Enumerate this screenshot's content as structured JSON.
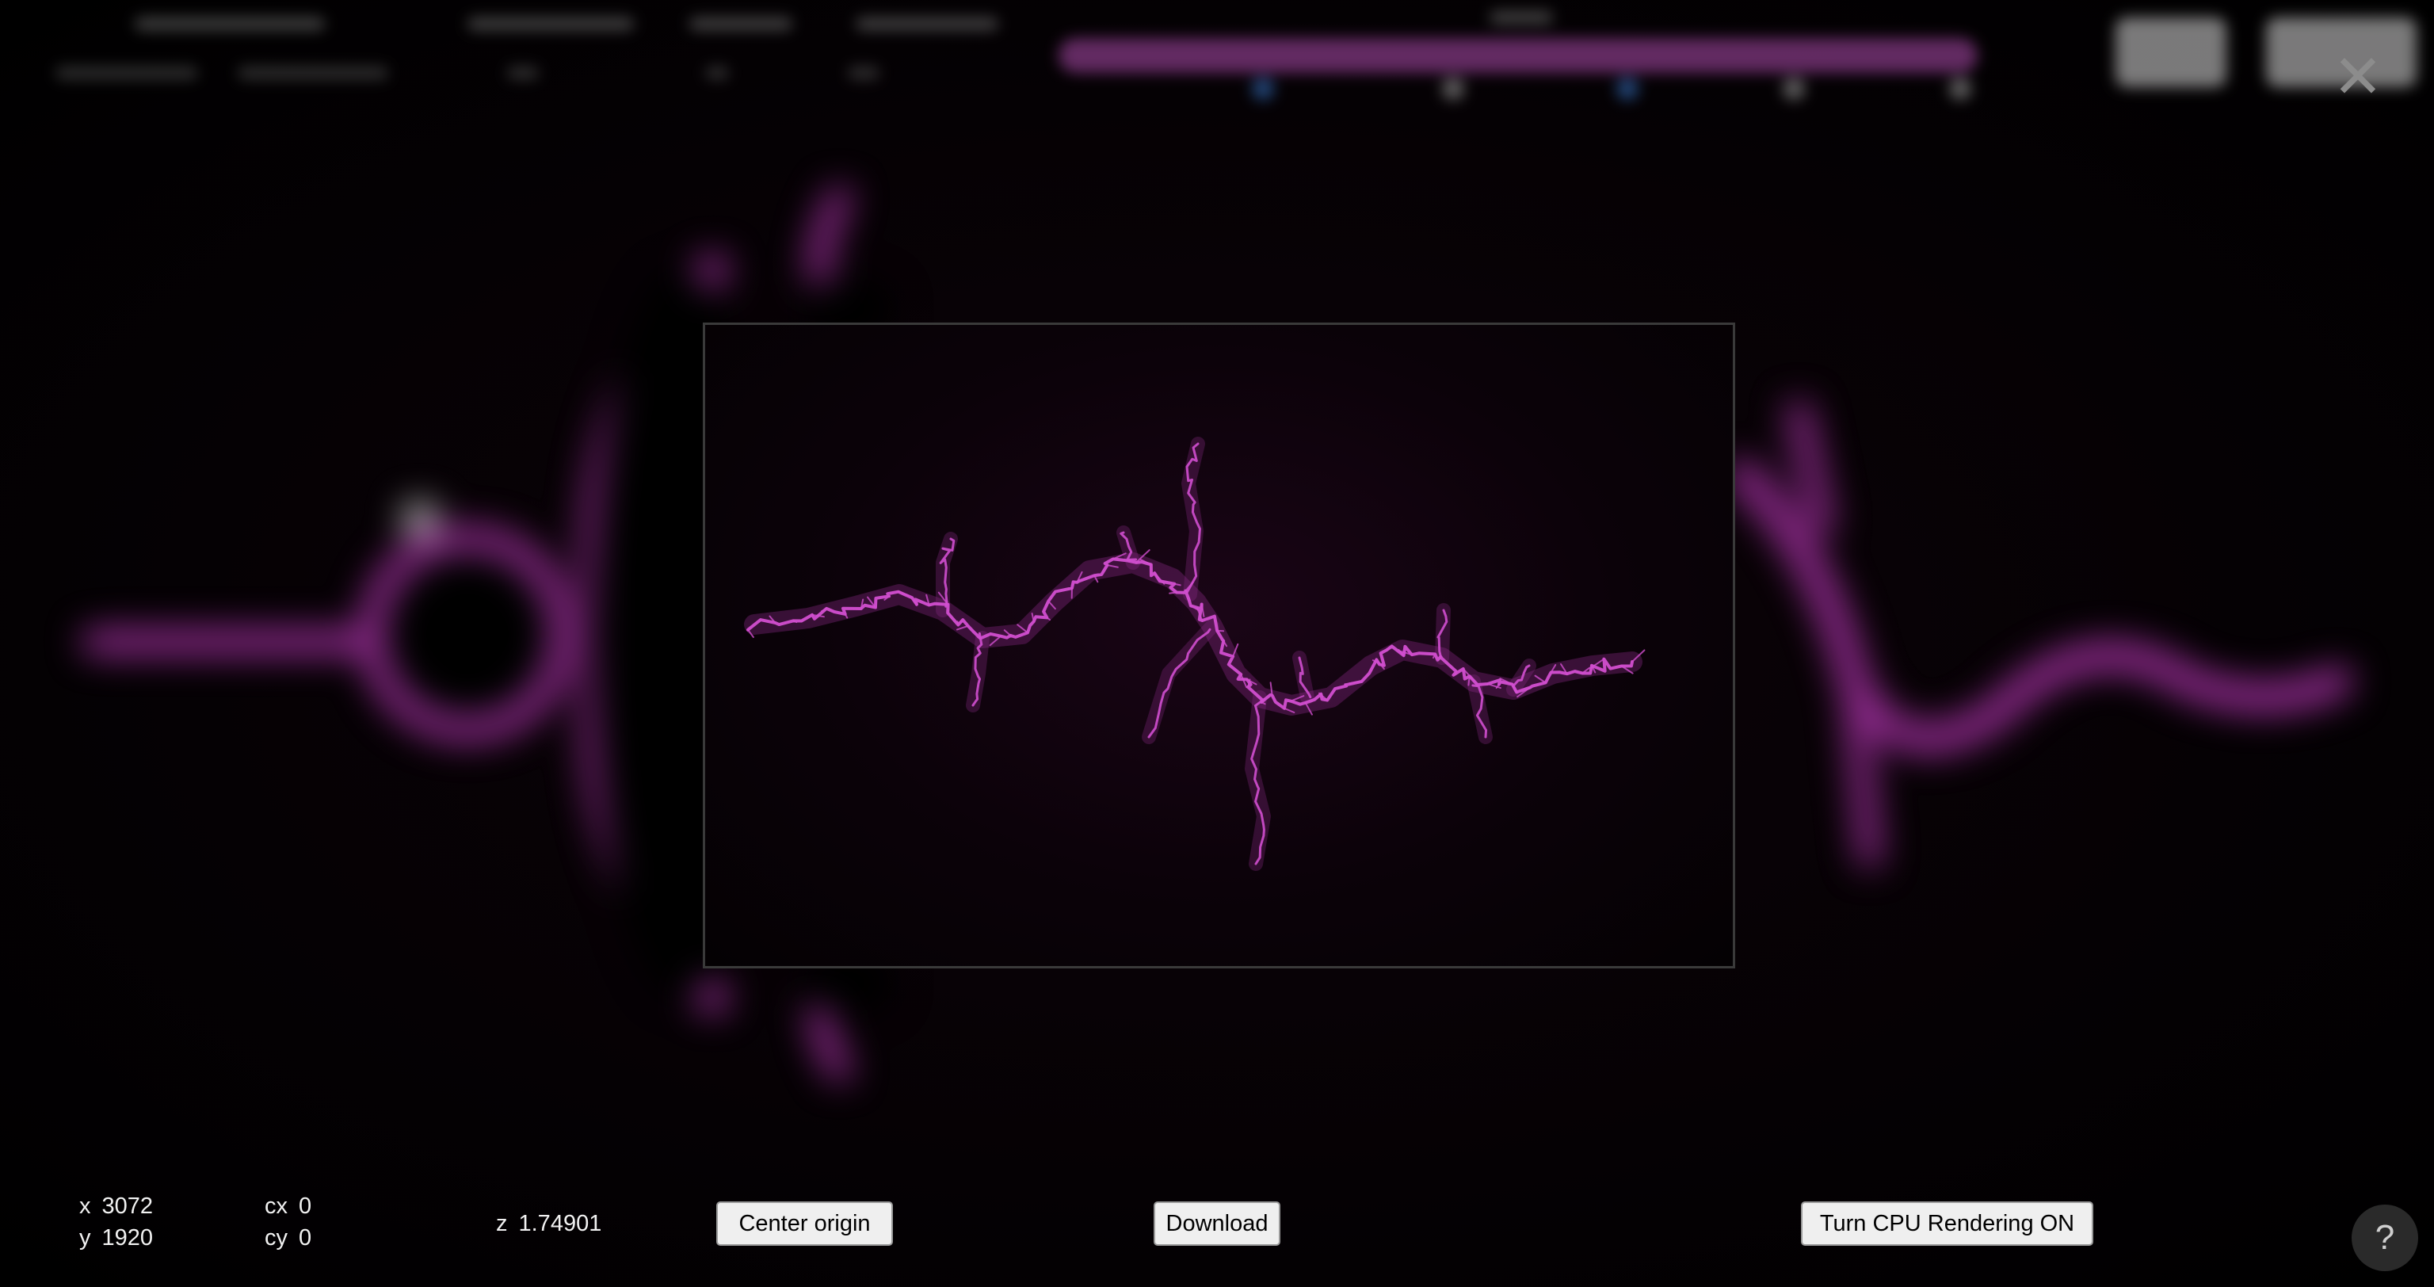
{
  "dialog": {
    "close_icon": "close-icon",
    "close_glyph": "✕"
  },
  "status": {
    "x_label": "x",
    "x_value": "3072",
    "y_label": "y",
    "y_value": "1920",
    "cx_label": "cx",
    "cx_value": "0",
    "cy_label": "cy",
    "cy_value": "0",
    "z_label": "z",
    "z_value": "1.74901"
  },
  "buttons": {
    "center_origin": "Center origin",
    "download": "Download",
    "cpu_rendering": "Turn CPU Rendering ON",
    "help": "?"
  },
  "colors": {
    "fractal": "#d24fd0",
    "fractal_glow": "#8e2a8c",
    "background": "#000000",
    "preview_border": "#3a3a3a"
  },
  "icons": {
    "help": "help-icon",
    "close": "close-icon"
  }
}
